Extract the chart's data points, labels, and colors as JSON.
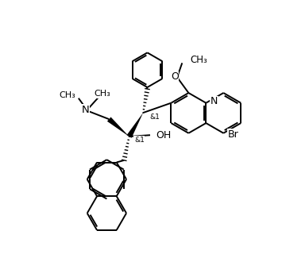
{
  "bg_color": "#ffffff",
  "line_color": "#000000",
  "lw": 1.4,
  "figsize": [
    3.55,
    3.2
  ],
  "dpi": 100,
  "xlim": [
    0,
    10
  ],
  "ylim": [
    0,
    9
  ]
}
